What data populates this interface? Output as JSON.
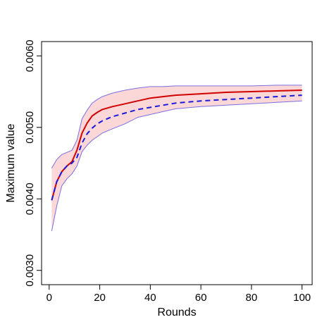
{
  "chart_data": {
    "type": "line",
    "xlabel": "Rounds",
    "ylabel": "Maximum value",
    "xlim": [
      -3,
      104
    ],
    "ylim": [
      0.0028,
      0.0062
    ],
    "xticks": [
      0,
      20,
      40,
      60,
      80,
      100
    ],
    "xtick_labels": [
      "0",
      "20",
      "40",
      "60",
      "80",
      "100"
    ],
    "yticks": [
      0.003,
      0.004,
      0.005,
      0.006
    ],
    "ytick_labels": [
      "0.0030",
      "0.0040",
      "0.0050",
      "0.0060"
    ],
    "grid": false,
    "legend": "none",
    "colors": {
      "solid_line": "#d10000",
      "dashed_line": "#1a1adc",
      "band_fill": "#fbd0d0",
      "band_stroke": "#7a6fe0",
      "axis": "#000000"
    },
    "series": [
      {
        "style": "solid",
        "x": [
          1,
          3,
          5,
          7,
          9,
          11,
          13,
          15,
          17,
          19,
          21,
          25,
          30,
          35,
          40,
          45,
          50,
          60,
          70,
          80,
          90,
          100
        ],
        "values": [
          0.00398,
          0.00424,
          0.00438,
          0.00446,
          0.00452,
          0.00468,
          0.00492,
          0.00506,
          0.00516,
          0.00521,
          0.00525,
          0.00529,
          0.00533,
          0.00537,
          0.00541,
          0.00543,
          0.00545,
          0.00547,
          0.00549,
          0.0055,
          0.00551,
          0.00552
        ]
      },
      {
        "style": "dashed",
        "x": [
          1,
          3,
          5,
          7,
          9,
          11,
          13,
          15,
          17,
          19,
          21,
          25,
          30,
          35,
          40,
          45,
          50,
          60,
          70,
          80,
          90,
          100
        ],
        "values": [
          0.00398,
          0.00424,
          0.00438,
          0.00446,
          0.0045,
          0.00458,
          0.00478,
          0.00491,
          0.00499,
          0.00505,
          0.00509,
          0.00515,
          0.0052,
          0.00525,
          0.00528,
          0.00531,
          0.00534,
          0.00537,
          0.00539,
          0.00541,
          0.00543,
          0.00545
        ]
      },
      {
        "style": "band",
        "x": [
          1,
          3,
          5,
          7,
          9,
          11,
          13,
          15,
          17,
          19,
          21,
          25,
          30,
          35,
          40,
          45,
          50,
          60,
          70,
          80,
          90,
          100
        ],
        "upper": [
          0.00443,
          0.00455,
          0.00462,
          0.00465,
          0.00468,
          0.00482,
          0.00512,
          0.00524,
          0.00534,
          0.00539,
          0.00543,
          0.00548,
          0.00552,
          0.00555,
          0.00557,
          0.00557,
          0.00558,
          0.00558,
          0.00558,
          0.00558,
          0.00559,
          0.00559
        ],
        "lower": [
          0.00355,
          0.0039,
          0.00418,
          0.00428,
          0.00435,
          0.00446,
          0.00466,
          0.00475,
          0.00482,
          0.00487,
          0.00492,
          0.00498,
          0.00505,
          0.00514,
          0.00518,
          0.00522,
          0.00526,
          0.00529,
          0.00531,
          0.00533,
          0.00535,
          0.00537
        ]
      }
    ]
  }
}
